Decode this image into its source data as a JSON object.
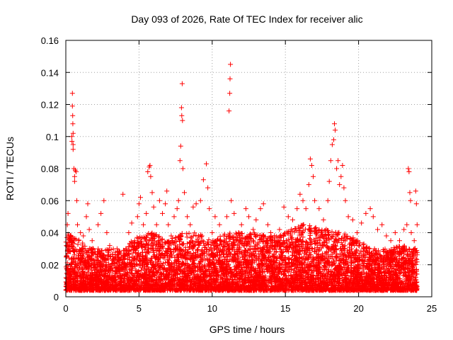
{
  "chart_data": {
    "type": "scatter",
    "title": "Day 093 of 2026, Rate Of TEC Index for receiver alic",
    "xlabel": "GPS time / hours",
    "ylabel": "ROTI / TECUs",
    "xlim": [
      0,
      25
    ],
    "ylim": [
      0,
      0.16
    ],
    "x_ticks": [
      0,
      5,
      10,
      15,
      20,
      25
    ],
    "x_tick_labels": [
      "0",
      "5",
      "10",
      "15",
      "20",
      "25"
    ],
    "y_ticks": [
      0,
      0.02,
      0.04,
      0.06,
      0.08,
      0.1,
      0.12,
      0.14,
      0.16
    ],
    "y_tick_labels": [
      "0",
      "0.02",
      "0.04",
      "0.06",
      "0.08",
      "0.1",
      "0.12",
      "0.14",
      "0.16"
    ],
    "grid": true,
    "marker": "+",
    "series": [
      {
        "name": "ROTI",
        "color": "#ff0000",
        "points": [
          [
            0.1,
            0.012
          ],
          [
            0.1,
            0.045
          ],
          [
            0.15,
            0.052
          ],
          [
            0.2,
            0.03
          ],
          [
            0.2,
            0.008
          ],
          [
            0.3,
            0.035
          ],
          [
            0.35,
            0.02
          ],
          [
            0.4,
            0.1
          ],
          [
            0.42,
            0.097
          ],
          [
            0.45,
            0.127
          ],
          [
            0.45,
            0.119
          ],
          [
            0.47,
            0.113
          ],
          [
            0.48,
            0.108
          ],
          [
            0.5,
            0.102
          ],
          [
            0.5,
            0.095
          ],
          [
            0.5,
            0.092
          ],
          [
            0.55,
            0.08
          ],
          [
            0.6,
            0.075
          ],
          [
            0.6,
            0.072
          ],
          [
            0.65,
            0.079
          ],
          [
            0.7,
            0.078
          ],
          [
            0.75,
            0.06
          ],
          [
            0.8,
            0.045
          ],
          [
            0.9,
            0.035
          ],
          [
            1.0,
            0.04
          ],
          [
            1.1,
            0.03
          ],
          [
            1.2,
            0.038
          ],
          [
            1.4,
            0.05
          ],
          [
            1.5,
            0.058
          ],
          [
            1.6,
            0.042
          ],
          [
            1.8,
            0.035
          ],
          [
            2.0,
            0.028
          ],
          [
            2.2,
            0.045
          ],
          [
            2.4,
            0.052
          ],
          [
            2.6,
            0.06
          ],
          [
            2.8,
            0.04
          ],
          [
            3.0,
            0.032
          ],
          [
            3.2,
            0.025
          ],
          [
            3.5,
            0.03
          ],
          [
            3.9,
            0.064
          ],
          [
            4.1,
            0.03
          ],
          [
            4.3,
            0.04
          ],
          [
            4.5,
            0.046
          ],
          [
            4.7,
            0.035
          ],
          [
            4.9,
            0.05
          ],
          [
            5.0,
            0.058
          ],
          [
            5.1,
            0.062
          ],
          [
            5.3,
            0.045
          ],
          [
            5.5,
            0.052
          ],
          [
            5.6,
            0.078
          ],
          [
            5.7,
            0.081
          ],
          [
            5.75,
            0.082
          ],
          [
            5.8,
            0.075
          ],
          [
            5.9,
            0.065
          ],
          [
            6.0,
            0.056
          ],
          [
            6.2,
            0.045
          ],
          [
            6.4,
            0.06
          ],
          [
            6.6,
            0.052
          ],
          [
            6.8,
            0.058
          ],
          [
            6.9,
            0.066
          ],
          [
            7.0,
            0.045
          ],
          [
            7.2,
            0.038
          ],
          [
            7.4,
            0.05
          ],
          [
            7.6,
            0.055
          ],
          [
            7.7,
            0.06
          ],
          [
            7.8,
            0.085
          ],
          [
            7.85,
            0.094
          ],
          [
            7.9,
            0.118
          ],
          [
            7.92,
            0.113
          ],
          [
            7.95,
            0.133
          ],
          [
            7.97,
            0.11
          ],
          [
            8.0,
            0.08
          ],
          [
            8.1,
            0.065
          ],
          [
            8.3,
            0.05
          ],
          [
            8.5,
            0.045
          ],
          [
            8.7,
            0.056
          ],
          [
            8.9,
            0.058
          ],
          [
            9.2,
            0.06
          ],
          [
            9.4,
            0.073
          ],
          [
            9.6,
            0.083
          ],
          [
            9.7,
            0.068
          ],
          [
            9.8,
            0.055
          ],
          [
            10.0,
            0.04
          ],
          [
            10.2,
            0.05
          ],
          [
            10.5,
            0.045
          ],
          [
            10.8,
            0.038
          ],
          [
            11.0,
            0.05
          ],
          [
            11.15,
            0.116
          ],
          [
            11.2,
            0.127
          ],
          [
            11.22,
            0.136
          ],
          [
            11.25,
            0.145
          ],
          [
            11.3,
            0.06
          ],
          [
            11.5,
            0.052
          ],
          [
            11.8,
            0.04
          ],
          [
            12.0,
            0.045
          ],
          [
            12.3,
            0.055
          ],
          [
            12.5,
            0.05
          ],
          [
            12.8,
            0.042
          ],
          [
            13.0,
            0.048
          ],
          [
            13.3,
            0.055
          ],
          [
            13.5,
            0.058
          ],
          [
            13.8,
            0.045
          ],
          [
            14.0,
            0.04
          ],
          [
            14.3,
            0.035
          ],
          [
            14.6,
            0.042
          ],
          [
            14.9,
            0.056
          ],
          [
            15.2,
            0.05
          ],
          [
            15.5,
            0.048
          ],
          [
            15.8,
            0.055
          ],
          [
            16.0,
            0.064
          ],
          [
            16.2,
            0.06
          ],
          [
            16.4,
            0.055
          ],
          [
            16.6,
            0.07
          ],
          [
            16.7,
            0.086
          ],
          [
            16.8,
            0.082
          ],
          [
            16.9,
            0.075
          ],
          [
            17.0,
            0.06
          ],
          [
            17.3,
            0.055
          ],
          [
            17.6,
            0.048
          ],
          [
            17.9,
            0.06
          ],
          [
            18.0,
            0.072
          ],
          [
            18.1,
            0.085
          ],
          [
            18.2,
            0.095
          ],
          [
            18.3,
            0.098
          ],
          [
            18.35,
            0.108
          ],
          [
            18.4,
            0.104
          ],
          [
            18.5,
            0.08
          ],
          [
            18.6,
            0.085
          ],
          [
            18.7,
            0.07
          ],
          [
            18.8,
            0.075
          ],
          [
            18.9,
            0.082
          ],
          [
            19.0,
            0.068
          ],
          [
            19.1,
            0.06
          ],
          [
            19.3,
            0.05
          ],
          [
            19.6,
            0.048
          ],
          [
            19.9,
            0.04
          ],
          [
            20.2,
            0.046
          ],
          [
            20.5,
            0.052
          ],
          [
            20.8,
            0.055
          ],
          [
            21.0,
            0.05
          ],
          [
            21.3,
            0.042
          ],
          [
            21.6,
            0.045
          ],
          [
            21.9,
            0.038
          ],
          [
            22.2,
            0.035
          ],
          [
            22.5,
            0.04
          ],
          [
            22.8,
            0.035
          ],
          [
            23.1,
            0.042
          ],
          [
            23.3,
            0.045
          ],
          [
            23.4,
            0.08
          ],
          [
            23.45,
            0.078
          ],
          [
            23.5,
            0.065
          ],
          [
            23.55,
            0.06
          ],
          [
            23.6,
            0.04
          ],
          [
            23.8,
            0.035
          ],
          [
            23.9,
            0.066
          ],
          [
            23.95,
            0.058
          ],
          [
            24.0,
            0.045
          ]
        ]
      }
    ],
    "background_band": {
      "description": "dense cluster of ROTI values",
      "x_range": [
        0,
        24
      ],
      "min": 0.004,
      "max_profile": [
        [
          0,
          0.04
        ],
        [
          1,
          0.035
        ],
        [
          2,
          0.03
        ],
        [
          3,
          0.03
        ],
        [
          4,
          0.03
        ],
        [
          5,
          0.04
        ],
        [
          6,
          0.04
        ],
        [
          7,
          0.035
        ],
        [
          8,
          0.04
        ],
        [
          9,
          0.04
        ],
        [
          10,
          0.035
        ],
        [
          11,
          0.04
        ],
        [
          12,
          0.04
        ],
        [
          13,
          0.04
        ],
        [
          14,
          0.038
        ],
        [
          15,
          0.04
        ],
        [
          16,
          0.045
        ],
        [
          17,
          0.045
        ],
        [
          18,
          0.042
        ],
        [
          19,
          0.04
        ],
        [
          20,
          0.035
        ],
        [
          21,
          0.03
        ],
        [
          22,
          0.03
        ],
        [
          23,
          0.032
        ],
        [
          24,
          0.03
        ]
      ],
      "count": 6500
    }
  }
}
